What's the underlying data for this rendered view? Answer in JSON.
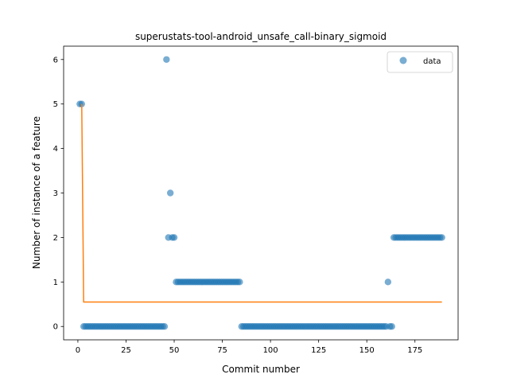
{
  "chart_data": {
    "type": "scatter",
    "title": "superustats-tool-android_unsafe_call-binary_sigmoid",
    "xlabel": "Commit number",
    "ylabel": "Number of instance of a feature",
    "xlim": [
      -7.4,
      197.4
    ],
    "ylim": [
      -0.3,
      6.3
    ],
    "xticks": [
      0,
      25,
      50,
      75,
      100,
      125,
      150,
      175
    ],
    "yticks": [
      0,
      1,
      2,
      3,
      4,
      5,
      6
    ],
    "legend": {
      "position": "top-right",
      "entries": [
        "data"
      ]
    },
    "colors": {
      "data": "#1f77b4",
      "fit": "#ff7f0e"
    },
    "series": [
      {
        "name": "data",
        "kind": "scatter",
        "runs": [
          {
            "start": 1,
            "end": 2,
            "value": 5
          },
          {
            "start": 3,
            "end": 45,
            "value": 0
          },
          {
            "start": 46,
            "end": 46,
            "value": 6
          },
          {
            "start": 47,
            "end": 47,
            "value": 2
          },
          {
            "start": 48,
            "end": 48,
            "value": 3
          },
          {
            "start": 49,
            "end": 50,
            "value": 2
          },
          {
            "start": 51,
            "end": 84,
            "value": 1
          },
          {
            "start": 85,
            "end": 160,
            "value": 0
          },
          {
            "start": 161,
            "end": 161,
            "value": 1
          },
          {
            "start": 162,
            "end": 163,
            "value": 0
          },
          {
            "start": 164,
            "end": 189,
            "value": 2
          }
        ]
      },
      {
        "name": "fit",
        "kind": "line",
        "points": [
          [
            2,
            5.0
          ],
          [
            3,
            0.55
          ],
          [
            189,
            0.55
          ]
        ]
      }
    ]
  }
}
